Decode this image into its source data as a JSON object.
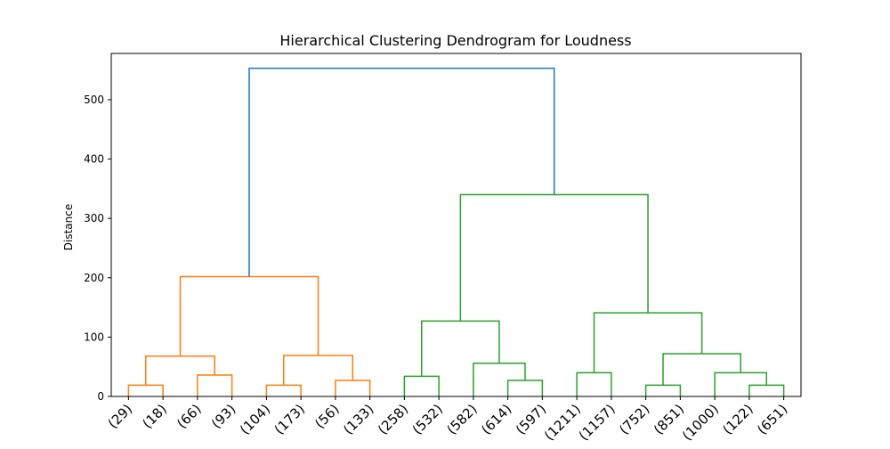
{
  "chart_data": {
    "type": "dendrogram",
    "title": "Hierarchical Clustering Dendrogram for Loudness",
    "xlabel": "",
    "ylabel": "Distance",
    "ylim": [
      0,
      578
    ],
    "yticks": [
      0,
      100,
      200,
      300,
      400,
      500
    ],
    "grid": false,
    "legend": "none",
    "leaf_labels": [
      "(29)",
      "(18)",
      "(66)",
      "(93)",
      "(104)",
      "(173)",
      "(56)",
      "(133)",
      "(258)",
      "(532)",
      "(582)",
      "(614)",
      "(597)",
      "(1211)",
      "(1157)",
      "(752)",
      "(851)",
      "(1000)",
      "(122)",
      "(651)"
    ],
    "cluster_colors": {
      "root": "#1f77b4",
      "cluster_1": "#ff7f0e",
      "cluster_2": "#2ca02c"
    },
    "merges": [
      {
        "x": [
          0,
          1
        ],
        "h": [
          0,
          0
        ],
        "height": 19,
        "color": "cluster_1"
      },
      {
        "x": [
          2,
          3
        ],
        "h": [
          0,
          0
        ],
        "height": 36,
        "color": "cluster_1"
      },
      {
        "x": [
          0.5,
          2.5
        ],
        "h": [
          19,
          36
        ],
        "height": 68,
        "color": "cluster_1"
      },
      {
        "x": [
          4,
          5
        ],
        "h": [
          0,
          0
        ],
        "height": 19,
        "color": "cluster_1"
      },
      {
        "x": [
          6,
          7
        ],
        "h": [
          0,
          0
        ],
        "height": 27,
        "color": "cluster_1"
      },
      {
        "x": [
          4.5,
          6.5
        ],
        "h": [
          19,
          27
        ],
        "height": 69,
        "color": "cluster_1"
      },
      {
        "x": [
          1.5,
          5.5
        ],
        "h": [
          68,
          69
        ],
        "height": 202,
        "color": "cluster_1"
      },
      {
        "x": [
          8,
          9
        ],
        "h": [
          0,
          0
        ],
        "height": 34,
        "color": "cluster_2"
      },
      {
        "x": [
          11,
          12
        ],
        "h": [
          0,
          0
        ],
        "height": 27,
        "color": "cluster_2"
      },
      {
        "x": [
          10,
          11.5
        ],
        "h": [
          0,
          27
        ],
        "height": 56,
        "color": "cluster_2"
      },
      {
        "x": [
          8.5,
          10.75
        ],
        "h": [
          34,
          56
        ],
        "height": 127,
        "color": "cluster_2"
      },
      {
        "x": [
          13,
          14
        ],
        "h": [
          0,
          0
        ],
        "height": 40,
        "color": "cluster_2"
      },
      {
        "x": [
          15,
          16
        ],
        "h": [
          0,
          0
        ],
        "height": 19,
        "color": "cluster_2"
      },
      {
        "x": [
          18,
          19
        ],
        "h": [
          0,
          0
        ],
        "height": 19,
        "color": "cluster_2"
      },
      {
        "x": [
          17,
          18.5
        ],
        "h": [
          0,
          19
        ],
        "height": 40,
        "color": "cluster_2"
      },
      {
        "x": [
          15.5,
          17.75
        ],
        "h": [
          19,
          40
        ],
        "height": 72,
        "color": "cluster_2"
      },
      {
        "x": [
          13.5,
          16.625
        ],
        "h": [
          40,
          72
        ],
        "height": 141,
        "color": "cluster_2"
      },
      {
        "x": [
          9.625,
          15.0625
        ],
        "h": [
          127,
          141
        ],
        "height": 340,
        "color": "cluster_2"
      },
      {
        "x": [
          3.5,
          12.34375
        ],
        "h": [
          202,
          340
        ],
        "height": 553,
        "color": "root"
      }
    ]
  }
}
